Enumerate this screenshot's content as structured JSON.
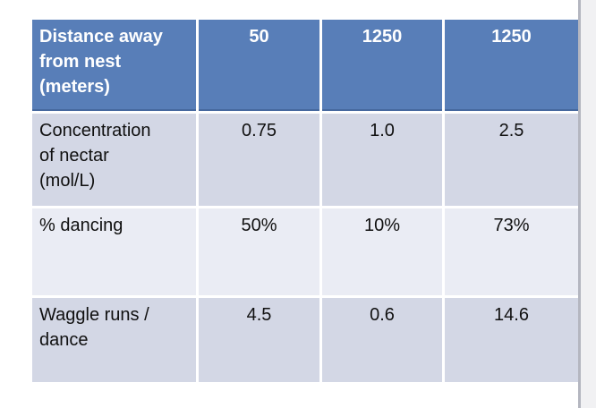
{
  "table": {
    "header_row": [
      "Distance away\nfrom nest\n(meters)",
      "50",
      "1250",
      "1250"
    ],
    "rows": [
      [
        "Concentration\nof nectar\n(mol/L)",
        "0.75",
        "1.0",
        "2.5"
      ],
      [
        "% dancing",
        "50%",
        "10%",
        "73%"
      ],
      [
        "Waggle runs /\ndance",
        "4.5",
        "0.6",
        "14.6"
      ]
    ]
  },
  "colors": {
    "header_bg": "#587EB8",
    "header_text": "#FFFFFF",
    "header_bottom_edge": "#46689E",
    "row_band_dark": "#D3D7E5",
    "row_band_light": "#EAECF4",
    "body_text": "#101010",
    "cell_gap": "#FFFFFF",
    "slide_bg": "#FFFFFF",
    "edge_divider": "#B4B6C0",
    "side_panel_bg": "#F1F1F3"
  }
}
